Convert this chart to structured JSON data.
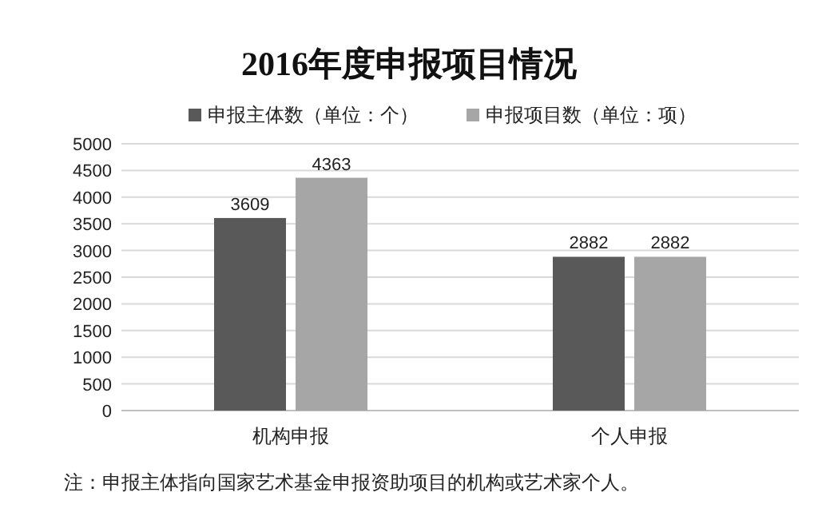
{
  "chart_data": {
    "type": "bar",
    "title": "2016年度申报项目情况",
    "categories": [
      "机构申报",
      "个人申报"
    ],
    "series": [
      {
        "name": "申报主体数（单位：个）",
        "color": "#595959",
        "values": [
          3609,
          2882
        ]
      },
      {
        "name": "申报项目数（单位：项）",
        "color": "#a6a6a6",
        "values": [
          4363,
          2882
        ]
      }
    ],
    "ylim": [
      0,
      5000
    ],
    "yticks": [
      0,
      500,
      1000,
      1500,
      2000,
      2500,
      3000,
      3500,
      4000,
      4500,
      5000
    ],
    "grid": "y",
    "legend": "top",
    "data_labels": true,
    "annotations": [
      "注：申报主体指向国家艺术基金申报资助项目的机构或艺术家个人。"
    ]
  }
}
